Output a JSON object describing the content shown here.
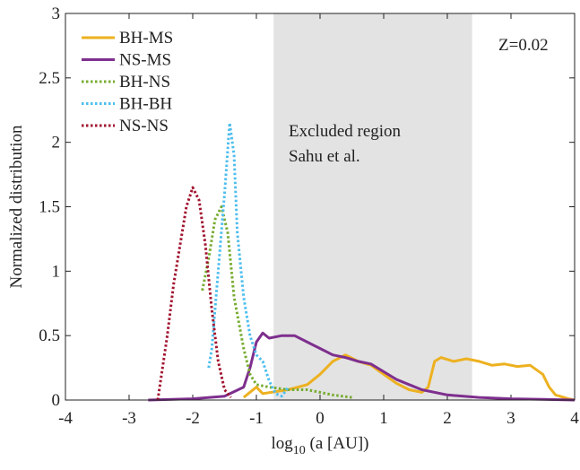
{
  "chart_data": {
    "type": "line",
    "xlabel": {
      "base": "log",
      "sub": "10",
      "rest": " (a [AU])"
    },
    "ylabel": "Normalized distribution",
    "xlim": [
      -4,
      4
    ],
    "ylim": [
      0,
      3
    ],
    "xticks": [
      -4,
      -3,
      -2,
      -1,
      0,
      1,
      2,
      3,
      4
    ],
    "yticks": [
      0,
      0.5,
      1,
      1.5,
      2,
      2.5,
      3
    ],
    "shaded_region": {
      "x": [
        -0.73,
        2.39
      ],
      "color": "#e3e3e3"
    },
    "annotations": [
      "Excluded region",
      "Sahu et al.",
      "Z=0.02"
    ],
    "legend": "top-left",
    "series": [
      {
        "name": "BH-MS",
        "color": "#EDB120",
        "dashed": false,
        "x": [
          -1.2,
          -1.0,
          -0.9,
          -0.5,
          -0.2,
          0,
          0.2,
          0.4,
          0.6,
          0.8,
          1.0,
          1.2,
          1.4,
          1.6,
          1.7,
          1.8,
          1.9,
          2.1,
          2.3,
          2.5,
          2.7,
          2.9,
          3.1,
          3.3,
          3.5,
          3.6,
          3.7,
          3.9,
          4.0
        ],
        "values": [
          0.02,
          0.1,
          0.05,
          0.08,
          0.12,
          0.2,
          0.3,
          0.35,
          0.3,
          0.27,
          0.2,
          0.13,
          0.08,
          0.06,
          0.1,
          0.3,
          0.33,
          0.3,
          0.32,
          0.3,
          0.27,
          0.28,
          0.26,
          0.27,
          0.2,
          0.1,
          0.04,
          0.01,
          0
        ]
      },
      {
        "name": "NS-MS",
        "color": "#7E2F8E",
        "dashed": false,
        "x": [
          -2.7,
          -2.0,
          -1.5,
          -1.2,
          -1.1,
          -1.0,
          -0.9,
          -0.8,
          -0.6,
          -0.4,
          -0.2,
          0,
          0.2,
          0.4,
          0.6,
          0.8,
          1.0,
          1.2,
          1.4,
          1.6,
          2.0,
          2.5,
          3.0,
          3.5,
          4.0
        ],
        "values": [
          0,
          0.01,
          0.03,
          0.1,
          0.25,
          0.45,
          0.52,
          0.48,
          0.5,
          0.5,
          0.45,
          0.4,
          0.35,
          0.33,
          0.3,
          0.28,
          0.22,
          0.16,
          0.12,
          0.08,
          0.04,
          0.02,
          0.01,
          0.005,
          0
        ]
      },
      {
        "name": "BH-NS",
        "color": "#77AC30",
        "dashed": true,
        "x": [
          -1.85,
          -1.75,
          -1.65,
          -1.55,
          -1.45,
          -1.35,
          -1.2,
          -1.1,
          -1.0,
          -0.8,
          -0.5,
          -0.2,
          0,
          0.2,
          0.5
        ],
        "values": [
          0.85,
          1.1,
          1.4,
          1.5,
          1.3,
          0.8,
          0.4,
          0.2,
          0.12,
          0.1,
          0.08,
          0.08,
          0.06,
          0.04,
          0.02
        ]
      },
      {
        "name": "BH-BH",
        "color": "#4DBEEE",
        "dashed": true,
        "x": [
          -1.75,
          -1.7,
          -1.6,
          -1.5,
          -1.42,
          -1.35,
          -1.3,
          -1.2,
          -1.1,
          -1.0,
          -0.9,
          -0.8,
          -0.7,
          -0.6,
          -0.5
        ],
        "values": [
          0.25,
          0.4,
          1.0,
          1.6,
          2.15,
          1.9,
          1.3,
          0.8,
          0.5,
          0.35,
          0.3,
          0.15,
          0.05,
          0.03,
          0.1
        ]
      },
      {
        "name": "NS-NS",
        "color": "#A2142F",
        "dashed": true,
        "x": [
          -2.55,
          -2.4,
          -2.3,
          -2.2,
          -2.1,
          -2.0,
          -1.9,
          -1.8,
          -1.7,
          -1.6,
          -1.5,
          -1.4
        ],
        "values": [
          0,
          0.5,
          0.9,
          1.2,
          1.5,
          1.65,
          1.55,
          1.2,
          0.7,
          0.3,
          0.08,
          0.02
        ]
      }
    ]
  }
}
